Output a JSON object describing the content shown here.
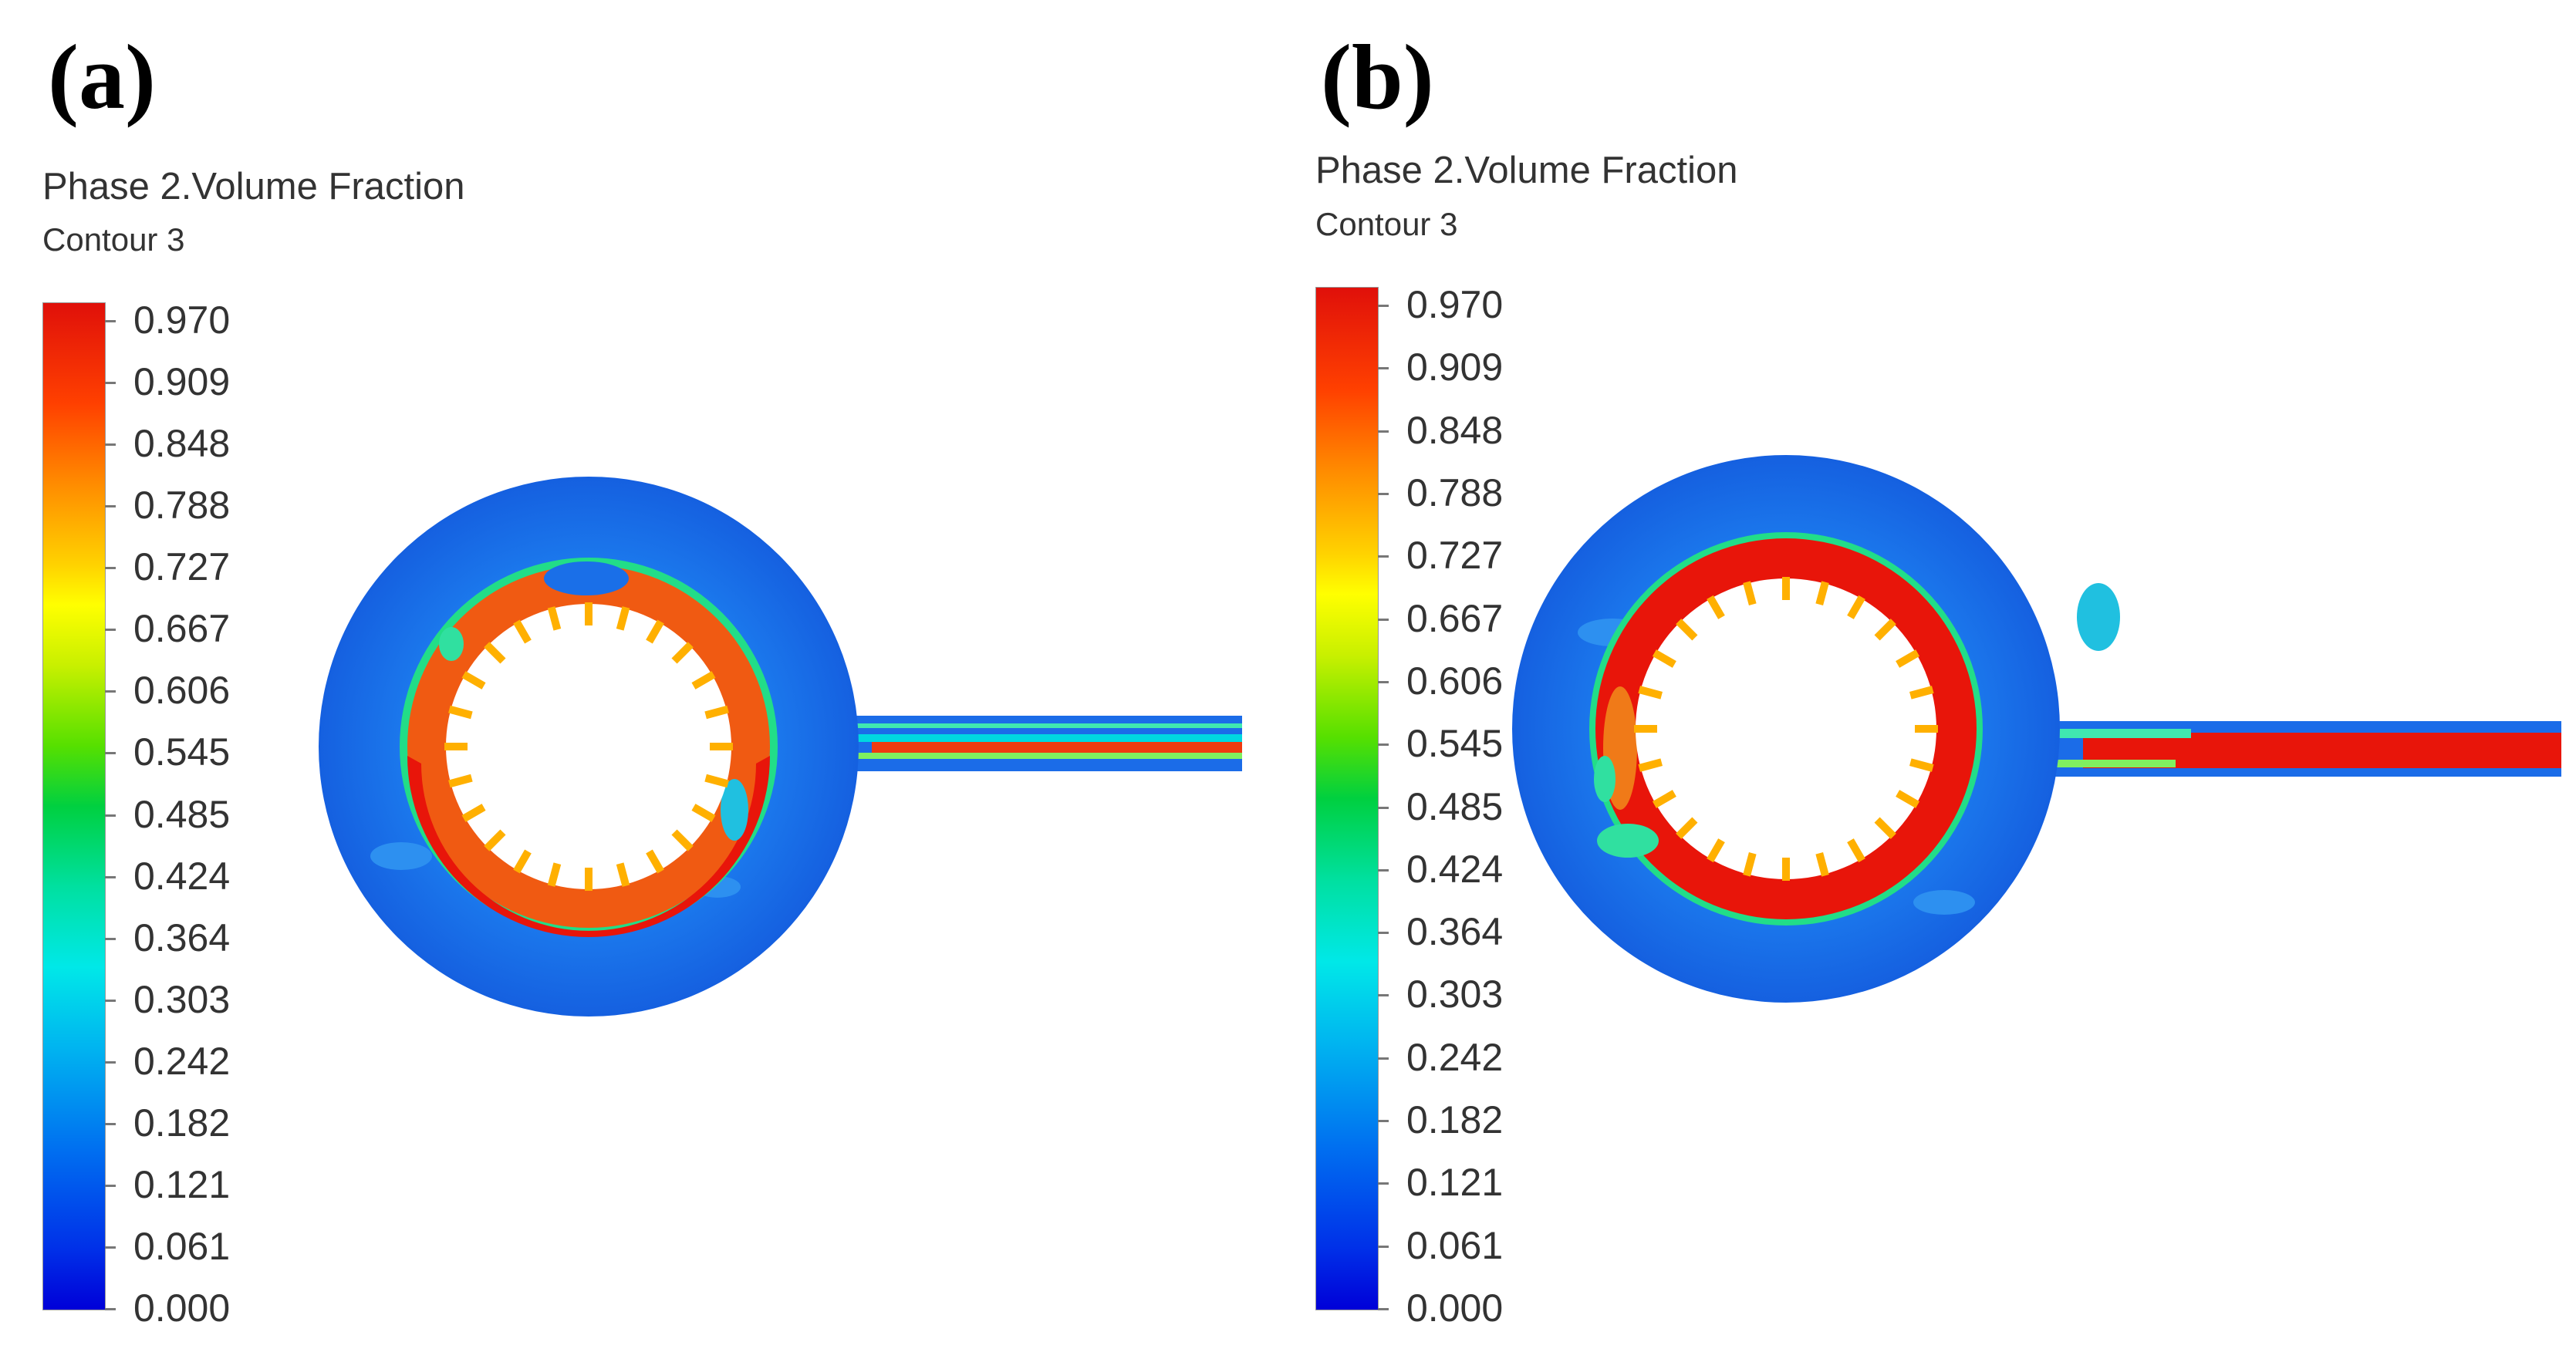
{
  "panels": [
    {
      "label": "(a)",
      "legend": {
        "title": "Phase 2.Volume Fraction",
        "subtitle": "Contour 3",
        "ticks": [
          "0.970",
          "0.909",
          "0.848",
          "0.788",
          "0.727",
          "0.667",
          "0.606",
          "0.545",
          "0.485",
          "0.424",
          "0.364",
          "0.303",
          "0.242",
          "0.182",
          "0.121",
          "0.061",
          "0.000"
        ]
      }
    },
    {
      "label": "(b)",
      "legend": {
        "title": "Phase 2.Volume Fraction",
        "subtitle": "Contour 3",
        "ticks": [
          "0.970",
          "0.909",
          "0.848",
          "0.788",
          "0.727",
          "0.667",
          "0.606",
          "0.545",
          "0.485",
          "0.424",
          "0.364",
          "0.303",
          "0.242",
          "0.182",
          "0.121",
          "0.061",
          "0.000"
        ]
      }
    }
  ],
  "colors": {
    "background": "#ffffff",
    "outer_liquid": "#1a6fe8",
    "ring_high": "#e8150a",
    "ring_mixed": "#f05a12",
    "interface": "#22dd88",
    "teeth": "#ffb000"
  }
}
